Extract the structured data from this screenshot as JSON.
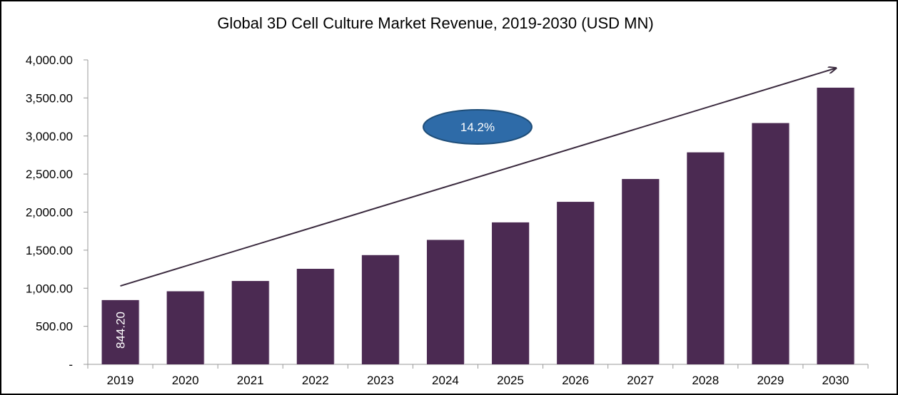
{
  "chart_data": {
    "type": "bar",
    "title": "Global 3D Cell Culture Market Revenue, 2019-2030 (USD MN)",
    "categories": [
      "2019",
      "2020",
      "2021",
      "2022",
      "2023",
      "2024",
      "2025",
      "2026",
      "2027",
      "2028",
      "2029",
      "2030"
    ],
    "values": [
      844.2,
      960,
      1095,
      1255,
      1435,
      1635,
      1865,
      2135,
      2435,
      2785,
      3170,
      3635
    ],
    "ylim": [
      0,
      4000
    ],
    "yticks": [
      0,
      500,
      1000,
      1500,
      2000,
      2500,
      3000,
      3500,
      4000
    ],
    "ytick_labels": [
      "-",
      "500.00",
      "1,000.00",
      "1,500.00",
      "2,000.00",
      "2,500.00",
      "3,000.00",
      "3,500.00",
      "4,000.00"
    ],
    "data_labels": [
      {
        "category": "2019",
        "text": "844.20"
      }
    ],
    "annotation": {
      "text": "14.2%",
      "fill": "#2E6BA8",
      "stroke": "#1F4E79"
    },
    "trend_arrow": {
      "from": [
        0,
        1030
      ],
      "to": [
        11,
        3890
      ]
    },
    "bar_color": "#4B2A52",
    "grid": false,
    "legend": "none"
  }
}
